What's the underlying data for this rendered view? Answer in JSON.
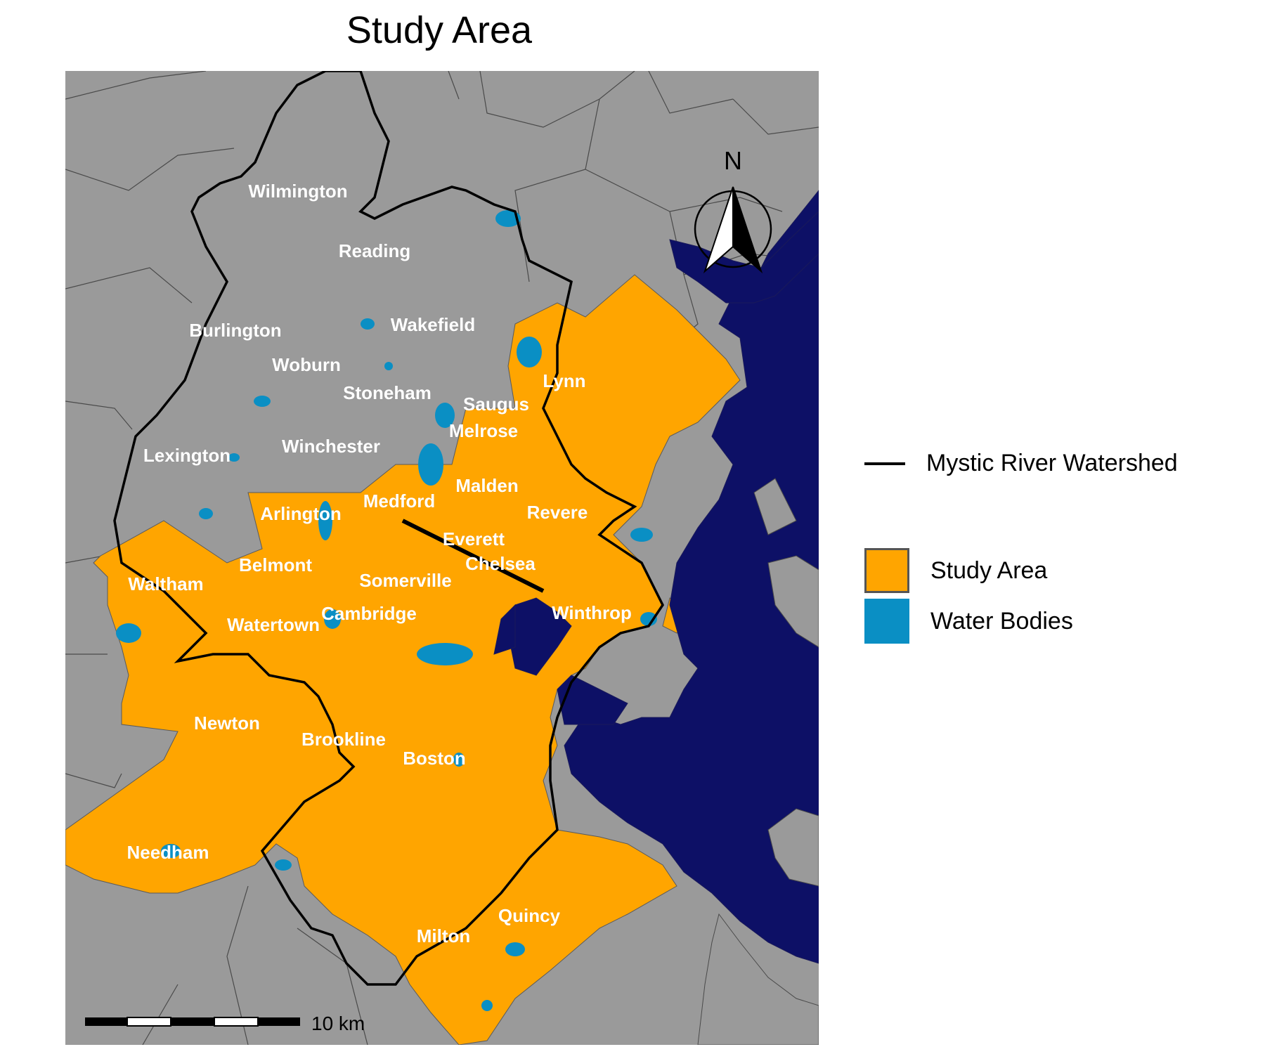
{
  "title": "Study Area",
  "colors": {
    "background_land": "#9a9a9a",
    "study_area": "#ffa500",
    "water_bodies": "#0a8fc4",
    "ocean": "#0d1066",
    "watershed_outline": "#000000",
    "town_label": "#ffffff"
  },
  "towns": [
    "Wilmington",
    "Reading",
    "Burlington",
    "Wakefield",
    "Woburn",
    "Lynn",
    "Stoneham",
    "Saugus",
    "Melrose",
    "Lexington",
    "Winchester",
    "Malden",
    "Medford",
    "Arlington",
    "Revere",
    "Everett",
    "Chelsea",
    "Belmont",
    "Waltham",
    "Somerville",
    "Winthrop",
    "Cambridge",
    "Watertown",
    "Newton",
    "Brookline",
    "Boston",
    "Needham",
    "Quincy",
    "Milton"
  ],
  "north_arrow": {
    "label": "N",
    "icon": "north-arrow-icon"
  },
  "scale_bar": {
    "label": "10 km"
  },
  "legend": {
    "items": [
      {
        "label": "Mystic River Watershed",
        "symbol": "line",
        "color": "#000000"
      },
      {
        "label": "Study Area",
        "symbol": "box",
        "color": "#ffa500"
      },
      {
        "label": "Water Bodies",
        "symbol": "box",
        "color": "#0a8fc4"
      }
    ]
  }
}
